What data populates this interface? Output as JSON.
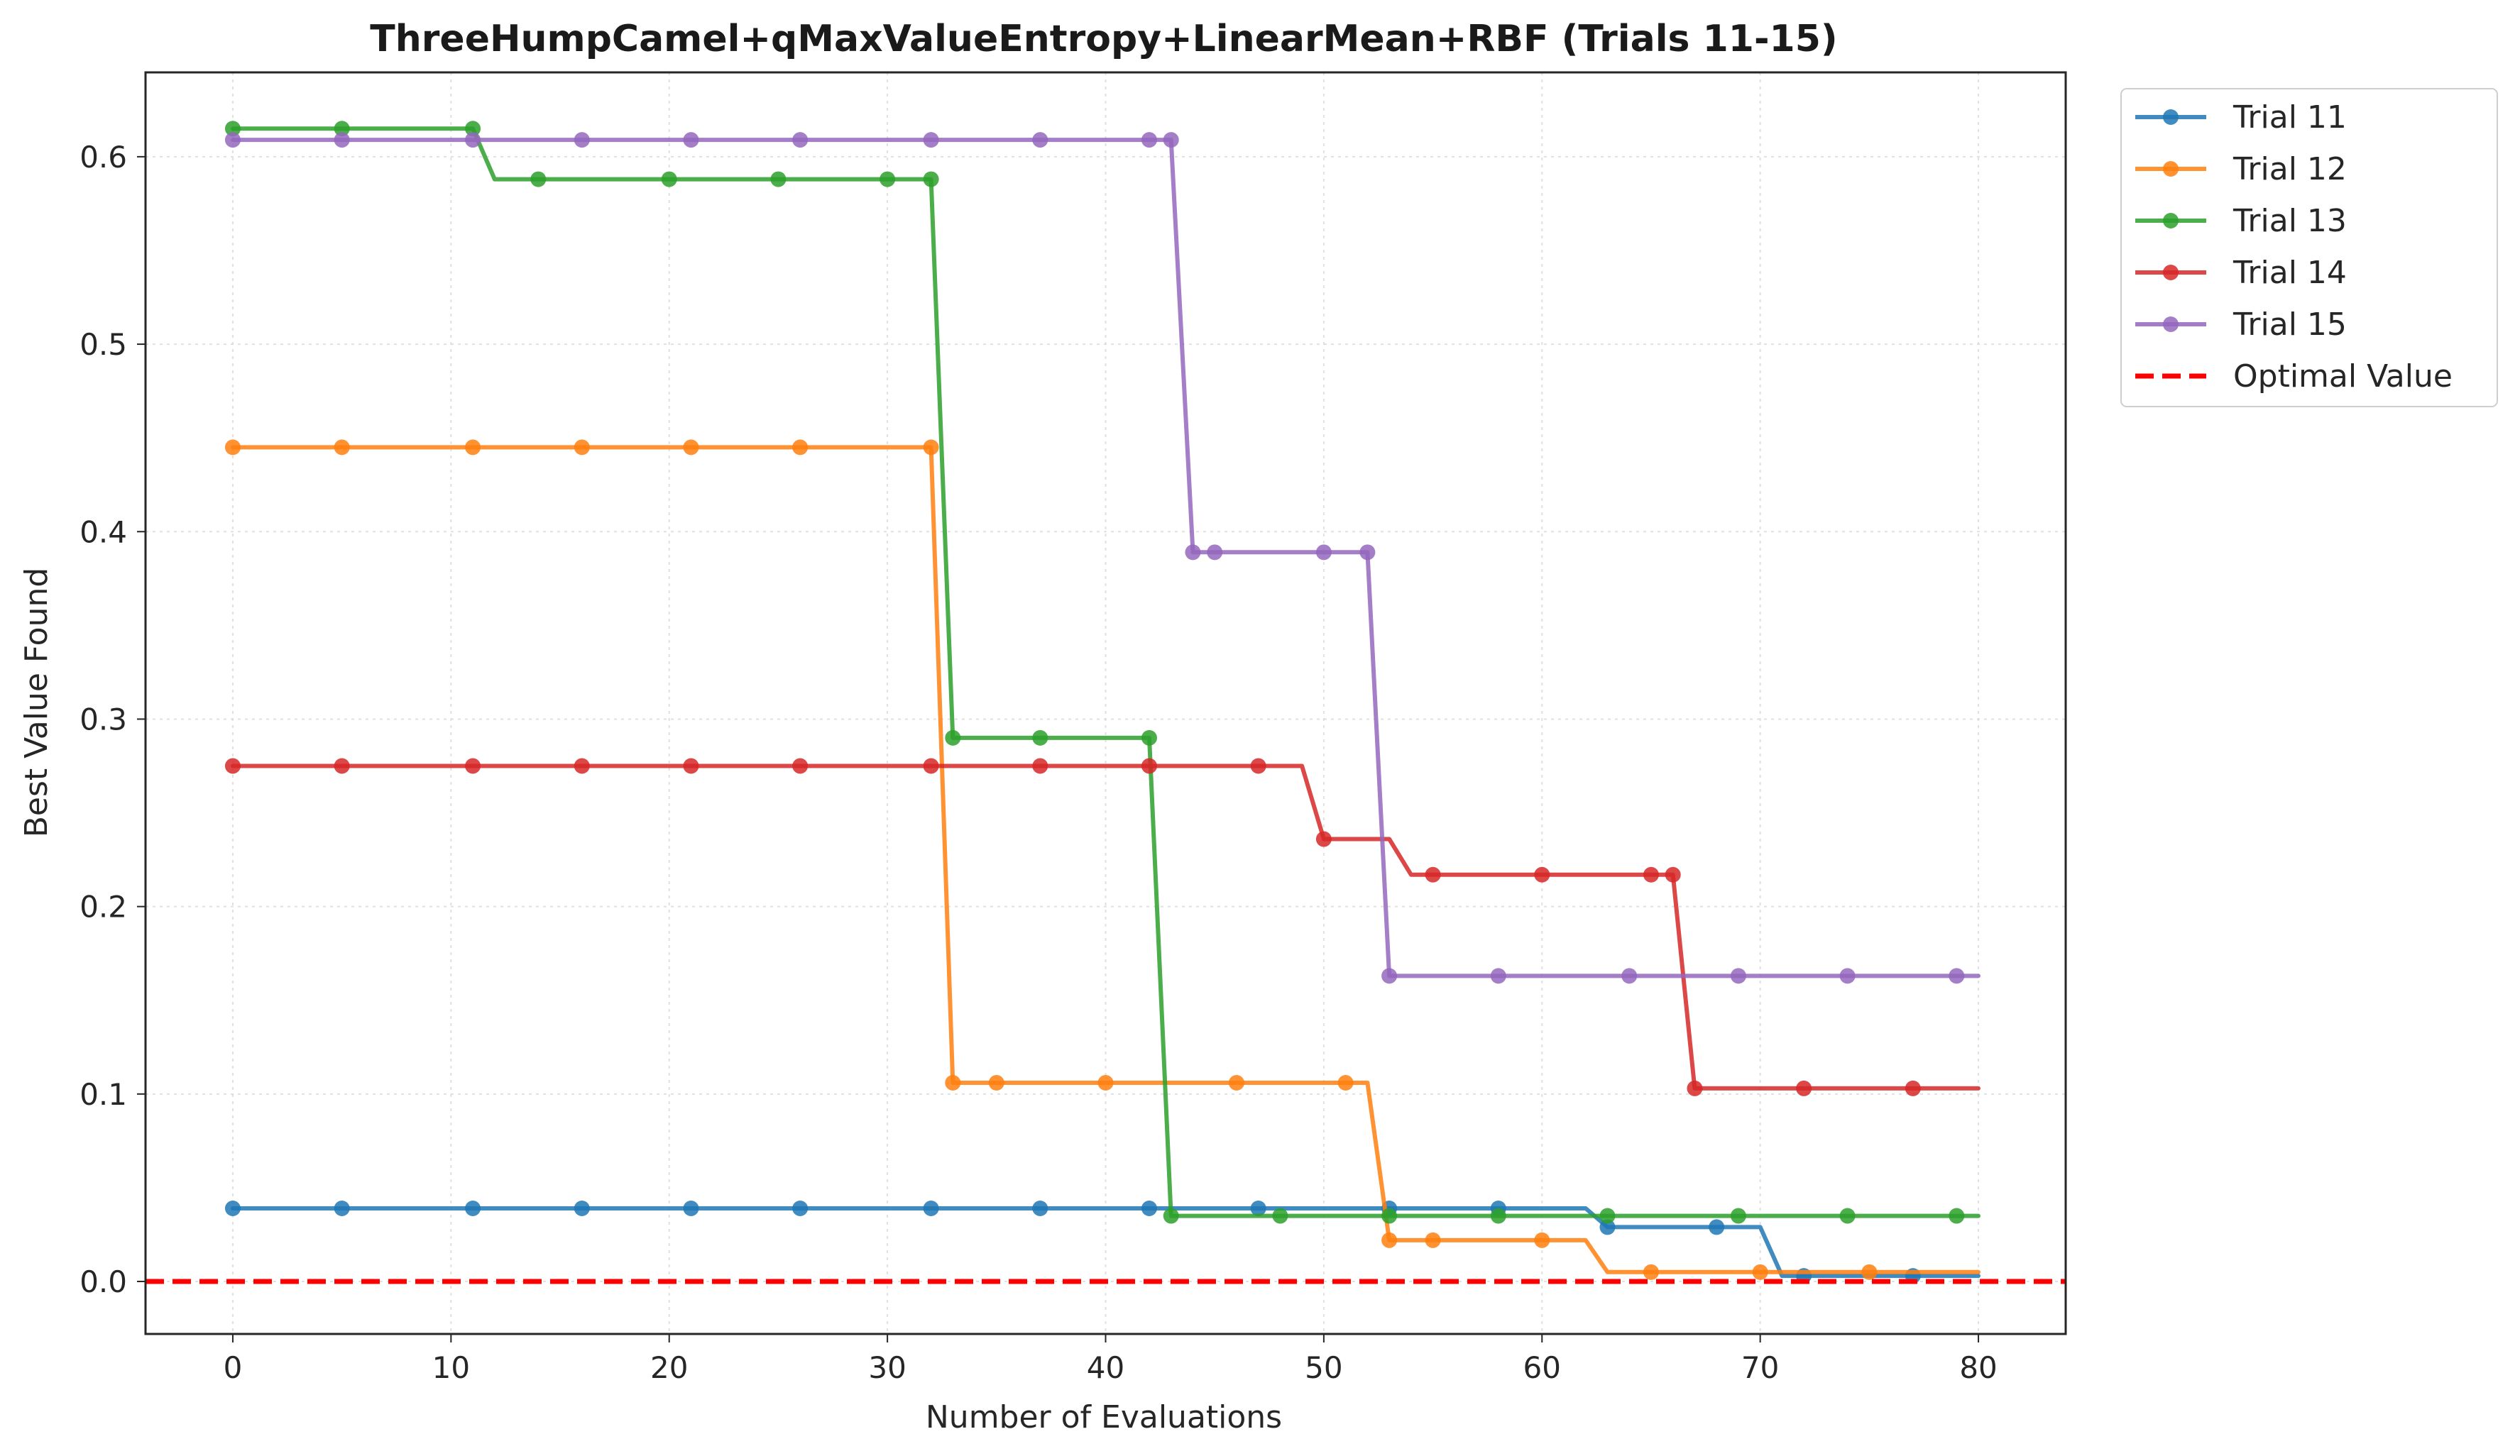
{
  "chart_data": {
    "type": "line",
    "title": "ThreeHumpCamel+qMaxValueEntropy+LinearMean+RBF (Trials 11-15)",
    "xlabel": "Number of Evaluations",
    "ylabel": "Best Value Found",
    "xlim": [
      -4,
      84
    ],
    "ylim": [
      -0.028,
      0.645
    ],
    "xticks": [
      0,
      10,
      20,
      30,
      40,
      50,
      60,
      70,
      80
    ],
    "yticks": [
      0.0,
      0.1,
      0.2,
      0.3,
      0.4,
      0.5,
      0.6
    ],
    "xtick_labels": [
      "0",
      "10",
      "20",
      "30",
      "40",
      "50",
      "60",
      "70",
      "80"
    ],
    "ytick_labels": [
      "0.0",
      "0.1",
      "0.2",
      "0.3",
      "0.4",
      "0.5",
      "0.6"
    ],
    "grid": true,
    "legend_position": "outside-top-right",
    "series": [
      {
        "name": "Trial 11",
        "color": "#1f77b4",
        "x": [
          0,
          62,
          63,
          70,
          71,
          80
        ],
        "y": [
          0.039,
          0.039,
          0.029,
          0.029,
          0.003,
          0.003
        ],
        "marker_x": [
          0,
          5,
          11,
          16,
          21,
          26,
          32,
          37,
          42,
          47,
          53,
          58,
          63,
          68,
          72,
          77
        ],
        "marker_y": [
          0.039,
          0.039,
          0.039,
          0.039,
          0.039,
          0.039,
          0.039,
          0.039,
          0.039,
          0.039,
          0.039,
          0.039,
          0.029,
          0.029,
          0.003,
          0.003
        ]
      },
      {
        "name": "Trial 12",
        "color": "#ff7f0e",
        "x": [
          0,
          32,
          33,
          52,
          53,
          62,
          63,
          80
        ],
        "y": [
          0.445,
          0.445,
          0.106,
          0.106,
          0.022,
          0.022,
          0.005,
          0.005
        ],
        "marker_x": [
          0,
          5,
          11,
          16,
          21,
          26,
          32,
          33,
          35,
          40,
          46,
          51,
          53,
          55,
          60,
          65,
          70,
          75
        ],
        "marker_y": [
          0.445,
          0.445,
          0.445,
          0.445,
          0.445,
          0.445,
          0.445,
          0.106,
          0.106,
          0.106,
          0.106,
          0.106,
          0.022,
          0.022,
          0.022,
          0.005,
          0.005,
          0.005
        ]
      },
      {
        "name": "Trial 13",
        "color": "#2ca02c",
        "x": [
          0,
          11,
          12,
          32,
          33,
          42,
          43,
          80
        ],
        "y": [
          0.615,
          0.615,
          0.588,
          0.588,
          0.29,
          0.29,
          0.035,
          0.035
        ],
        "marker_x": [
          0,
          5,
          11,
          14,
          20,
          25,
          30,
          32,
          33,
          37,
          42,
          43,
          48,
          53,
          58,
          63,
          69,
          74,
          79
        ],
        "marker_y": [
          0.615,
          0.615,
          0.615,
          0.588,
          0.588,
          0.588,
          0.588,
          0.588,
          0.29,
          0.29,
          0.29,
          0.035,
          0.035,
          0.035,
          0.035,
          0.035,
          0.035,
          0.035,
          0.035
        ]
      },
      {
        "name": "Trial 14",
        "color": "#d62728",
        "x": [
          0,
          49,
          50,
          53,
          54,
          66,
          67,
          80
        ],
        "y": [
          0.275,
          0.275,
          0.236,
          0.236,
          0.217,
          0.217,
          0.103,
          0.103
        ],
        "marker_x": [
          0,
          5,
          11,
          16,
          21,
          26,
          32,
          37,
          42,
          47,
          50,
          55,
          60,
          65,
          66,
          67,
          72,
          77
        ],
        "marker_y": [
          0.275,
          0.275,
          0.275,
          0.275,
          0.275,
          0.275,
          0.275,
          0.275,
          0.275,
          0.275,
          0.236,
          0.217,
          0.217,
          0.217,
          0.217,
          0.103,
          0.103,
          0.103
        ]
      },
      {
        "name": "Trial 15",
        "color": "#9467bd",
        "x": [
          0,
          43,
          44,
          52,
          53,
          80
        ],
        "y": [
          0.609,
          0.609,
          0.389,
          0.389,
          0.163,
          0.163
        ],
        "marker_x": [
          0,
          5,
          11,
          16,
          21,
          26,
          32,
          37,
          42,
          43,
          44,
          45,
          50,
          52,
          53,
          58,
          64,
          69,
          74,
          79
        ],
        "marker_y": [
          0.609,
          0.609,
          0.609,
          0.609,
          0.609,
          0.609,
          0.609,
          0.609,
          0.609,
          0.609,
          0.389,
          0.389,
          0.389,
          0.389,
          0.163,
          0.163,
          0.163,
          0.163,
          0.163,
          0.163
        ]
      }
    ],
    "reference_line": {
      "name": "Optimal Value",
      "y": 0.0,
      "color": "#ff0000",
      "style": "dashed"
    }
  }
}
